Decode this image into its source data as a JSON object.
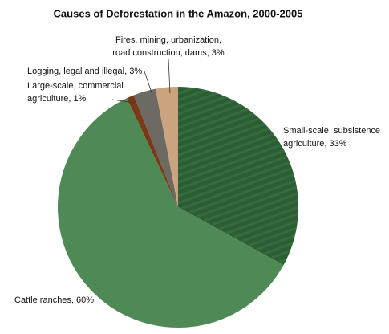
{
  "chart_data": {
    "type": "pie",
    "title": "Causes of Deforestation in the Amazon, 2000-2005",
    "labels": [
      [
        "Small-scale, subsistence",
        "agriculture, 33%"
      ],
      [
        "Cattle ranches, 60%"
      ],
      [
        "Large-scale, commercial",
        "agriculture, 1%"
      ],
      [
        "Logging, legal and illegal, 3%"
      ],
      [
        "Fires, mining, urbanization,",
        "road construction, dams, 3%"
      ]
    ],
    "values": [
      33,
      60,
      1,
      3,
      3
    ],
    "colors": [
      "#2c5e34",
      "#4f8a56",
      "#7a3a18",
      "#6d6a64",
      "#c9a47e"
    ]
  }
}
